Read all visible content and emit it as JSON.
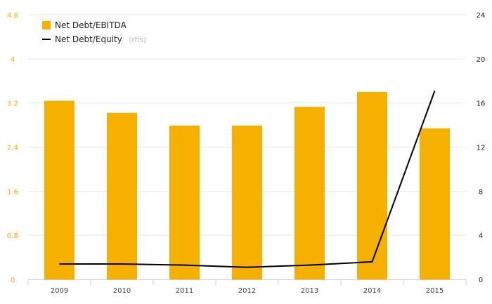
{
  "chart_data": {
    "type": "bar",
    "categories": [
      "2009",
      "2010",
      "2011",
      "2012",
      "2013",
      "2014",
      "2015"
    ],
    "series": [
      {
        "name": "Net Debt/EBITDA",
        "type": "bar",
        "axis": "left",
        "color": "#f5b000",
        "values": [
          3.24,
          3.02,
          2.79,
          2.79,
          3.13,
          3.4,
          2.74
        ]
      },
      {
        "name": "Net Debt/Equity",
        "note": "(rhs)",
        "type": "line",
        "axis": "right",
        "color": "#000000",
        "values": [
          1.4,
          1.4,
          1.3,
          1.1,
          1.3,
          1.6,
          17.1
        ]
      }
    ],
    "y_left": {
      "min": 0,
      "max": 4.8,
      "ticks": [
        "0",
        "0.8",
        "1.6",
        "2.4",
        "3.2",
        "4",
        "4.8"
      ],
      "color": "#f5a800"
    },
    "y_right": {
      "min": 0,
      "max": 24,
      "ticks": [
        "0",
        "4",
        "8",
        "12",
        "16",
        "20",
        "24"
      ]
    },
    "grid": true,
    "legend_position": "top-left"
  }
}
